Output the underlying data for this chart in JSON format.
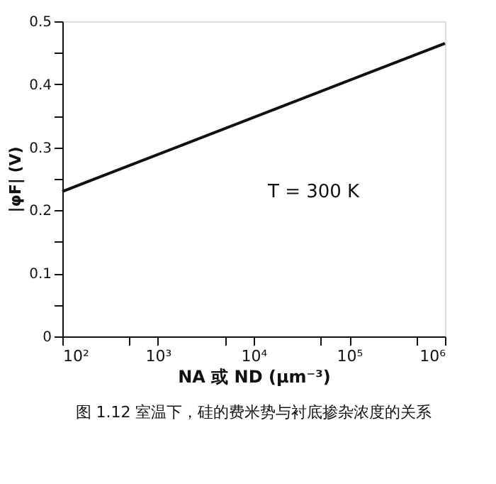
{
  "chart_data": {
    "type": "line",
    "xlabel": "NA 或 ND (μm⁻³)",
    "ylabel": "|φF| (V)",
    "x": [
      100,
      1000000
    ],
    "series": [
      {
        "color": "#111111",
        "values": [
          0.23,
          0.465
        ]
      }
    ],
    "log": "x",
    "xlim": [
      100,
      1000000
    ],
    "ylim": [
      0,
      0.5
    ],
    "xticks": [
      {
        "value": 100,
        "label": "10²"
      },
      {
        "value": 500,
        "label": null
      },
      {
        "value": 1000,
        "label": "10³"
      },
      {
        "value": 5000,
        "label": null
      },
      {
        "value": 10000,
        "label": "10⁴"
      },
      {
        "value": 50000,
        "label": null
      },
      {
        "value": 100000,
        "label": "10⁵"
      },
      {
        "value": 500000,
        "label": null
      },
      {
        "value": 1000000,
        "label": "10⁶"
      }
    ],
    "yticks": [
      0,
      {
        "value": 0.05,
        "label": null
      },
      0.1,
      {
        "value": 0.15,
        "label": null
      },
      0.2,
      {
        "value": 0.25,
        "label": null
      },
      0.3,
      {
        "value": 0.35,
        "label": null
      },
      0.4,
      {
        "value": 0.45,
        "label": null
      },
      0.5
    ],
    "grid": false,
    "marker": "none",
    "line_style": "solid",
    "annotations": [
      "T = 300 K",
      "图 1.12  室温下，硅的费米势与衬底掺杂浓度的关系"
    ]
  }
}
